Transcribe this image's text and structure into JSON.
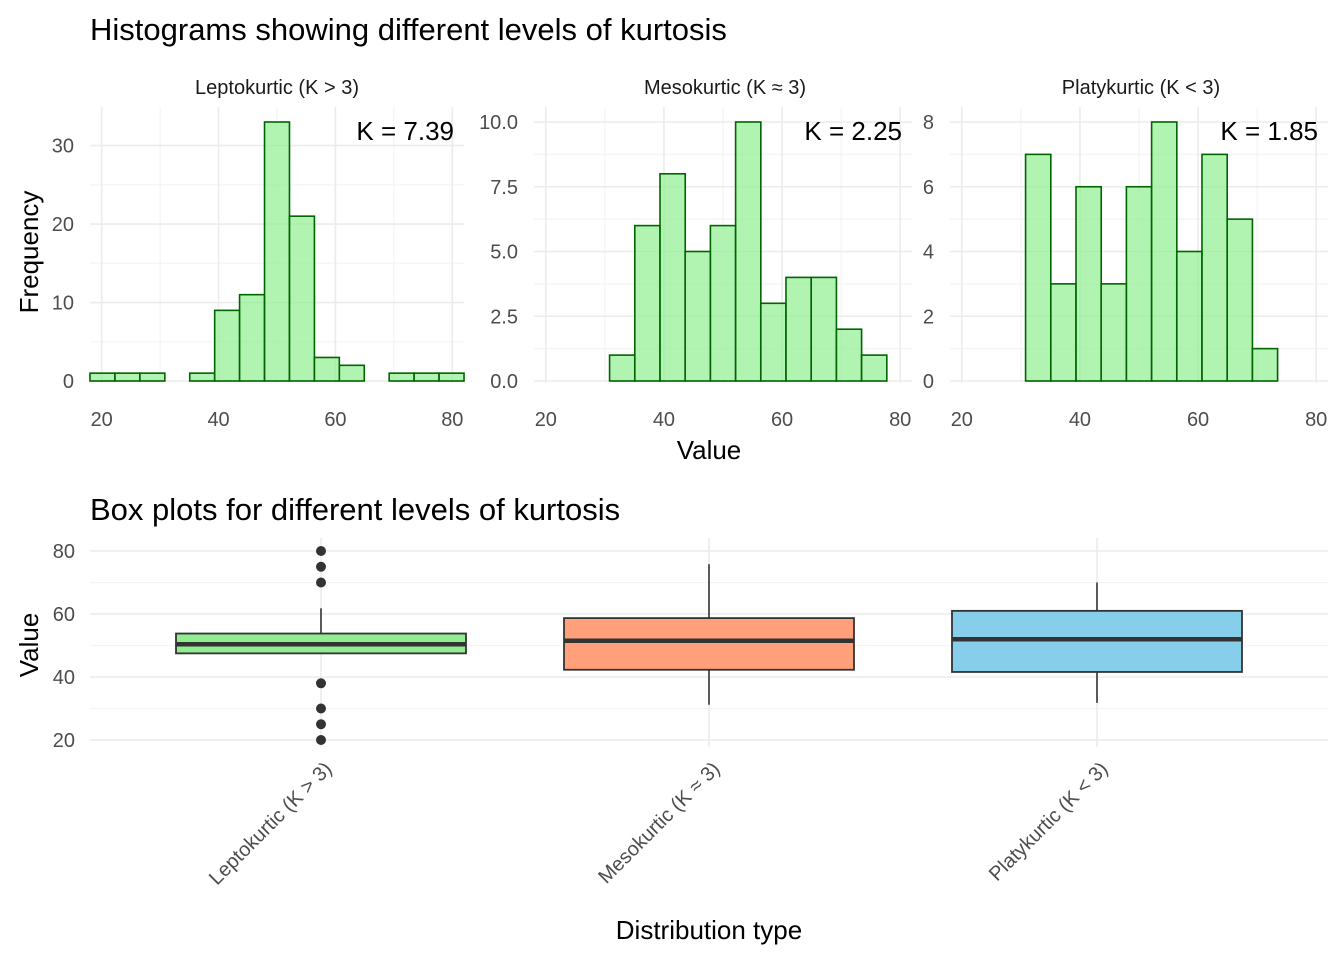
{
  "histograms": {
    "title": "Histograms showing different levels of kurtosis",
    "ylabel": "Frequency",
    "xlabel": "Value",
    "fill_color": "#90EE90",
    "stroke_color": "#006400"
  },
  "boxplots": {
    "title": "Box plots for different levels of kurtosis",
    "ylabel": "Value",
    "xlabel": "Distribution type"
  },
  "chart_data": [
    {
      "type": "bar",
      "title": "Leptokurtic (K > 3)",
      "annotation": "K = 7.39",
      "xlabel": "Value",
      "ylabel": "Frequency",
      "xlim": [
        18,
        82
      ],
      "ylim": [
        0,
        33
      ],
      "xticks": [
        20,
        40,
        60,
        80
      ],
      "xtick_labels": [
        "20",
        "40",
        "60",
        "80"
      ],
      "yticks": [
        0,
        10,
        20,
        30
      ],
      "ytick_labels": [
        "0",
        "10",
        "20",
        "30"
      ],
      "bin_width": 4.27,
      "bin_centers": [
        20.13,
        24.4,
        28.67,
        32.93,
        37.2,
        41.47,
        45.73,
        50.0,
        54.27,
        58.53,
        62.8,
        67.07,
        71.33,
        75.6,
        79.87
      ],
      "values": [
        1,
        1,
        1,
        0,
        1,
        9,
        11,
        33,
        21,
        3,
        2,
        0,
        1,
        1,
        1
      ]
    },
    {
      "type": "bar",
      "title": "Mesokurtic (K ≈ 3)",
      "annotation": "K = 2.25",
      "xlabel": "Value",
      "ylabel": "Frequency",
      "xlim": [
        18,
        82
      ],
      "ylim": [
        0,
        10
      ],
      "xticks": [
        20,
        40,
        60,
        80
      ],
      "xtick_labels": [
        "20",
        "40",
        "60",
        "80"
      ],
      "yticks": [
        0,
        2.5,
        5,
        7.5,
        10
      ],
      "ytick_labels": [
        "0.0",
        "2.5",
        "5.0",
        "7.5",
        "10.0"
      ],
      "bin_width": 4.27,
      "bin_centers": [
        20.13,
        24.4,
        28.67,
        32.93,
        37.2,
        41.47,
        45.73,
        50.0,
        54.27,
        58.53,
        62.8,
        67.07,
        71.33,
        75.6,
        79.87
      ],
      "values": [
        0,
        0,
        0,
        1,
        6,
        8,
        5,
        6,
        10,
        3,
        4,
        4,
        2,
        1,
        0
      ]
    },
    {
      "type": "bar",
      "title": "Platykurtic (K < 3)",
      "annotation": "K = 1.85",
      "xlabel": "Value",
      "ylabel": "Frequency",
      "xlim": [
        18,
        82
      ],
      "ylim": [
        0,
        8
      ],
      "xticks": [
        20,
        40,
        60,
        80
      ],
      "xtick_labels": [
        "20",
        "40",
        "60",
        "80"
      ],
      "yticks": [
        0,
        2,
        4,
        6,
        8
      ],
      "ytick_labels": [
        "0",
        "2",
        "4",
        "6",
        "8"
      ],
      "bin_width": 4.27,
      "bin_centers": [
        20.13,
        24.4,
        28.67,
        32.93,
        37.2,
        41.47,
        45.73,
        50.0,
        54.27,
        58.53,
        62.8,
        67.07,
        71.33,
        75.6,
        79.87
      ],
      "values": [
        0,
        0,
        0,
        7,
        3,
        6,
        3,
        6,
        8,
        4,
        7,
        5,
        1,
        0,
        0
      ]
    },
    {
      "type": "box",
      "title": "Box plots for different levels of kurtosis",
      "xlabel": "Distribution type",
      "ylabel": "Value",
      "ylim": [
        17,
        80
      ],
      "yticks": [
        20,
        40,
        60,
        80
      ],
      "ytick_labels": [
        "20",
        "40",
        "60",
        "80"
      ],
      "categories": [
        "Leptokurtic (K > 3)",
        "Mesokurtic (K ≈ 3)",
        "Platykurtic (K < 3)"
      ],
      "boxes": [
        {
          "category": "Leptokurtic (K > 3)",
          "whisker_low": 47.5,
          "q1": 47.5,
          "median": 50.4,
          "q3": 53.8,
          "whisker_high": 61.8,
          "outliers": [
            20,
            25,
            30,
            38,
            70,
            75,
            80
          ],
          "color": "#90EE90"
        },
        {
          "category": "Mesokurtic (K ≈ 3)",
          "whisker_low": 31.2,
          "q1": 42.3,
          "median": 51.5,
          "q3": 58.7,
          "whisker_high": 75.8,
          "outliers": [],
          "color": "#FFA07A"
        },
        {
          "category": "Platykurtic (K < 3)",
          "whisker_low": 31.8,
          "q1": 41.6,
          "median": 52.0,
          "q3": 61.0,
          "whisker_high": 70.0,
          "outliers": [],
          "color": "#87CEEB"
        }
      ]
    }
  ]
}
